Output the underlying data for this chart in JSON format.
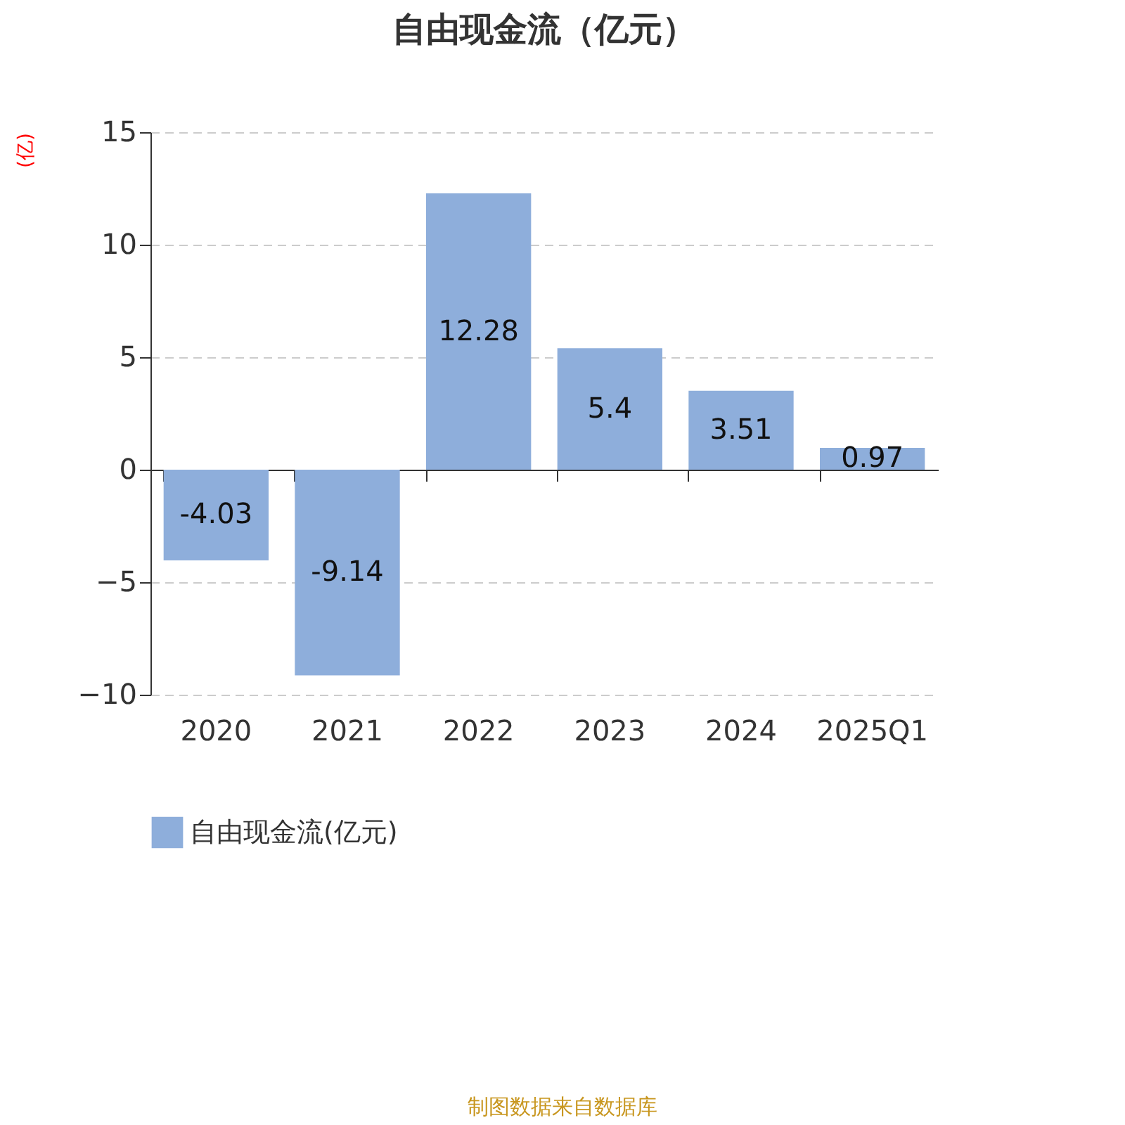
{
  "chart_data": {
    "type": "bar",
    "title": "自由现金流（亿元）",
    "ylabel": "(亿)",
    "categories": [
      "2020",
      "2021",
      "2022",
      "2023",
      "2024",
      "2025Q1"
    ],
    "series": [
      {
        "name": "自由现金流(亿元)",
        "color": "#8eaedb",
        "values": [
          -4.03,
          -9.14,
          12.28,
          5.4,
          3.51,
          0.97
        ]
      }
    ],
    "ylim": [
      -10,
      15
    ],
    "yticks": [
      -10,
      -5,
      0,
      5,
      10,
      15
    ],
    "grid": "y",
    "legend": "bottom",
    "data_labels": true,
    "annotations": [
      "制图数据来自数据库"
    ]
  }
}
